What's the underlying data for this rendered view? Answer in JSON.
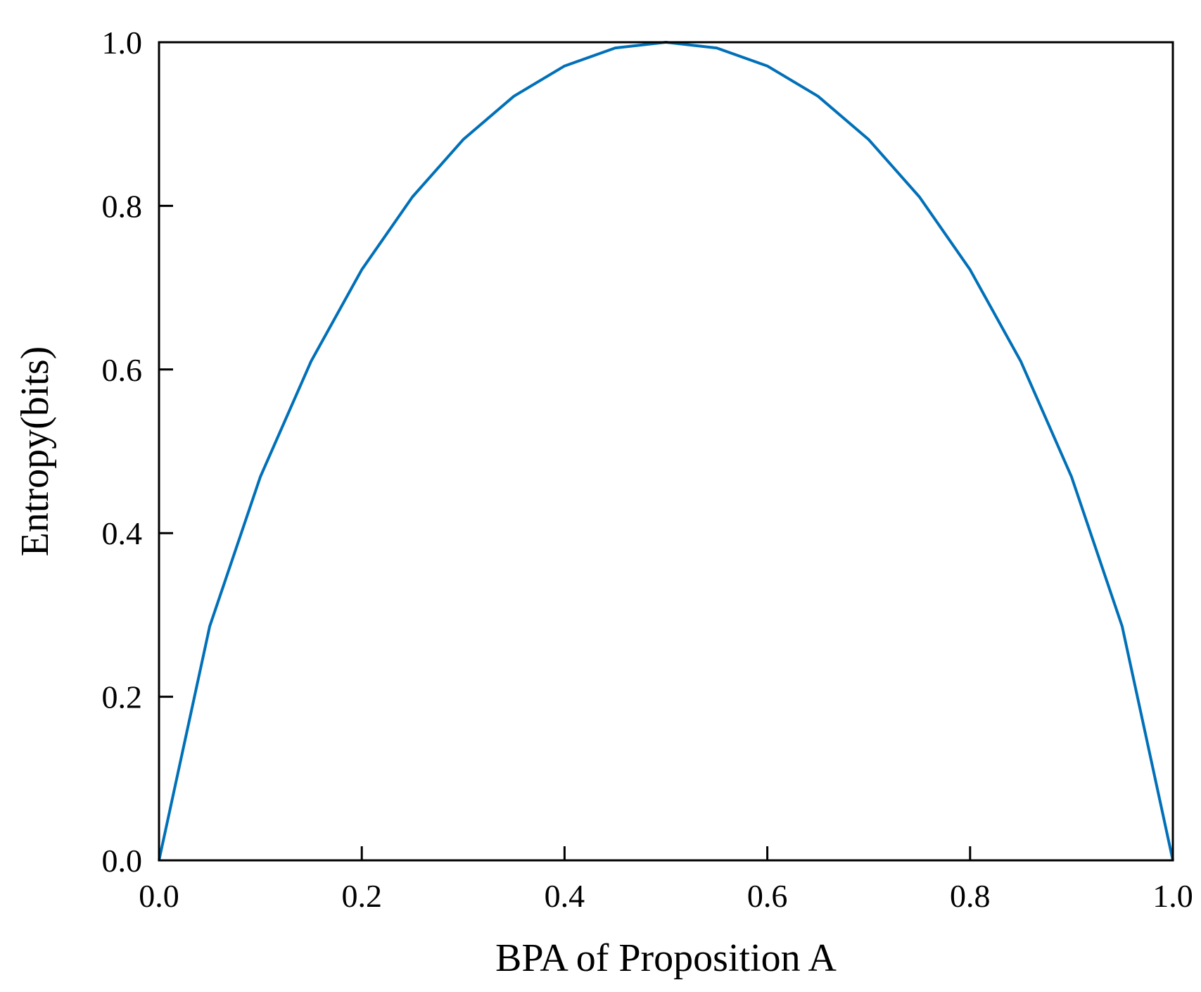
{
  "chart_data": {
    "type": "line",
    "title": "",
    "xlabel": "BPA of Proposition A",
    "ylabel": "Entropy(bits)",
    "xlim": [
      0.0,
      1.0
    ],
    "ylim": [
      0.0,
      1.0
    ],
    "xticks": [
      0.0,
      0.2,
      0.4,
      0.6,
      0.8,
      1.0
    ],
    "yticks": [
      0.0,
      0.2,
      0.4,
      0.6,
      0.8,
      1.0
    ],
    "xtick_labels": [
      "0.0",
      "0.2",
      "0.4",
      "0.6",
      "0.8",
      "1.0"
    ],
    "ytick_labels": [
      "0.0",
      "0.2",
      "0.4",
      "0.6",
      "0.8",
      "1.0"
    ],
    "grid": false,
    "legend": "none",
    "series": [
      {
        "color": "#0070b8",
        "x": [
          0.0,
          0.05,
          0.1,
          0.15,
          0.2,
          0.25,
          0.3,
          0.35,
          0.4,
          0.45,
          0.5,
          0.55,
          0.6,
          0.65,
          0.7,
          0.75,
          0.8,
          0.85,
          0.9,
          0.95,
          1.0
        ],
        "y": [
          0.0,
          0.286,
          0.469,
          0.61,
          0.722,
          0.811,
          0.881,
          0.934,
          0.971,
          0.993,
          1.0,
          0.993,
          0.971,
          0.934,
          0.881,
          0.811,
          0.722,
          0.61,
          0.469,
          0.286,
          0.0
        ]
      }
    ]
  }
}
